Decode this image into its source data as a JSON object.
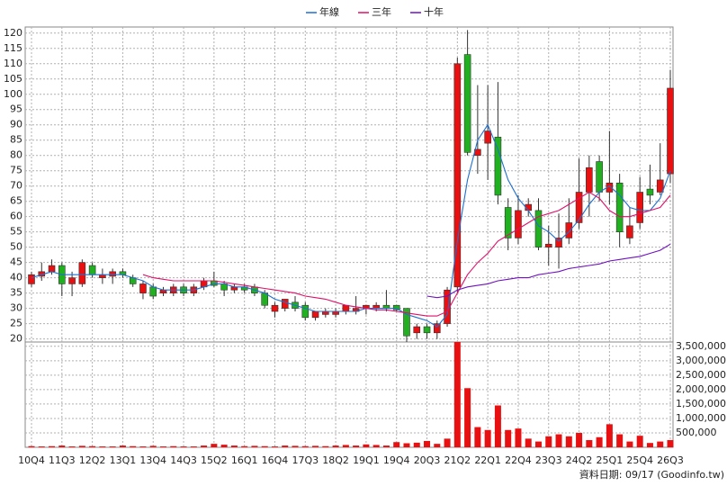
{
  "chart_data": {
    "type": "candlestick",
    "categories": [
      "10Q4",
      "11Q1",
      "11Q2",
      "11Q3",
      "11Q4",
      "12Q1",
      "12Q2",
      "12Q3",
      "12Q4",
      "13Q1",
      "13Q2",
      "13Q3",
      "13Q4",
      "14Q1",
      "14Q2",
      "14Q3",
      "14Q4",
      "15Q1",
      "15Q2",
      "15Q3",
      "15Q4",
      "16Q1",
      "16Q2",
      "16Q3",
      "16Q4",
      "17Q1",
      "17Q2",
      "17Q3",
      "17Q4",
      "18Q1",
      "18Q2",
      "18Q3",
      "18Q4",
      "19Q1",
      "19Q2",
      "19Q3",
      "19Q4",
      "20Q1",
      "20Q2",
      "20Q3",
      "20Q4",
      "21Q1",
      "21Q2",
      "21Q3",
      "21Q4",
      "22Q1",
      "22Q2",
      "22Q3",
      "22Q4",
      "23Q1",
      "23Q2",
      "23Q3",
      "23Q4",
      "24Q1",
      "24Q2",
      "24Q3",
      "24Q4",
      "25Q1",
      "25Q2",
      "25Q3",
      "25Q4",
      "26Q1",
      "26Q2",
      "26Q3"
    ],
    "x_label_every": 3,
    "open": [
      38,
      40.5,
      42,
      44,
      38,
      38,
      44,
      40,
      40.5,
      42,
      40,
      35,
      37,
      35,
      35,
      37,
      35,
      37,
      39,
      38,
      36,
      37,
      37,
      35,
      29,
      30,
      32,
      31,
      27,
      28,
      28,
      29,
      29,
      30,
      30,
      31,
      31,
      30,
      22,
      24,
      22,
      25,
      37,
      113,
      80,
      84,
      86,
      63,
      53,
      62,
      62,
      50,
      50,
      53,
      58,
      68,
      78,
      68,
      71,
      53,
      58,
      69,
      68,
      74
    ],
    "high": [
      42,
      45,
      46,
      45,
      42,
      46,
      45,
      43,
      43,
      43,
      41,
      39,
      38,
      37,
      38,
      38,
      38,
      40,
      42,
      39,
      38,
      38,
      38,
      36,
      32,
      33,
      34,
      32,
      29,
      30,
      30,
      31,
      34,
      31,
      32,
      36,
      31,
      30,
      25,
      25,
      26,
      37,
      112,
      121,
      103,
      103,
      104,
      66,
      67,
      66,
      66,
      57,
      61,
      66,
      79,
      80,
      80,
      88,
      74,
      63,
      73,
      77,
      84,
      108
    ],
    "low": [
      37,
      39,
      41,
      34,
      34,
      37,
      40,
      38,
      38,
      40,
      37,
      33,
      33,
      34,
      34,
      34,
      34,
      36,
      37,
      34,
      35,
      35,
      34,
      30,
      27,
      29,
      29,
      26,
      26,
      27,
      27,
      28,
      28,
      28,
      29,
      29,
      29,
      19,
      20,
      20,
      20,
      24,
      35,
      80,
      74,
      72,
      64,
      49,
      51,
      60,
      49,
      44,
      43,
      51,
      56,
      60,
      65,
      64,
      50,
      51,
      56,
      64,
      67,
      71
    ],
    "close": [
      41,
      42,
      44,
      38,
      40,
      45,
      41,
      41,
      42,
      41,
      38,
      38,
      34,
      36,
      37,
      35,
      37,
      39,
      37.5,
      36,
      37,
      36,
      35,
      31,
      31,
      33,
      30,
      27,
      29,
      29,
      29,
      31,
      30,
      31,
      31,
      30,
      29.5,
      21,
      24,
      22,
      25,
      36,
      110,
      81,
      82,
      88,
      67,
      53,
      62,
      64,
      50,
      51,
      53,
      58,
      68,
      76,
      68,
      71,
      55,
      57,
      68,
      67,
      72,
      102
    ],
    "volume": [
      40000,
      30000,
      40000,
      60000,
      30000,
      50000,
      40000,
      30000,
      30000,
      60000,
      40000,
      30000,
      50000,
      30000,
      40000,
      30000,
      30000,
      60000,
      120000,
      90000,
      60000,
      40000,
      50000,
      40000,
      30000,
      60000,
      50000,
      40000,
      50000,
      40000,
      60000,
      80000,
      60000,
      100000,
      80000,
      60000,
      180000,
      140000,
      160000,
      220000,
      120000,
      300000,
      3650000,
      2050000,
      700000,
      600000,
      1450000,
      600000,
      650000,
      300000,
      200000,
      380000,
      450000,
      380000,
      500000,
      250000,
      350000,
      800000,
      450000,
      200000,
      400000,
      150000,
      200000,
      250000
    ],
    "up_color": "#e81010",
    "down_color": "#20b020",
    "series": [
      {
        "name": "年線",
        "color": "#1e6fd0",
        "values": [
          40,
          41,
          42,
          41,
          41,
          41,
          41,
          41,
          41,
          41,
          40,
          39,
          37,
          36,
          36,
          36,
          36,
          37,
          38,
          38,
          37,
          37,
          36,
          35,
          33,
          32,
          31,
          30,
          29,
          29,
          29,
          29,
          29,
          30,
          30,
          30,
          30,
          28,
          27,
          26,
          24,
          28,
          52,
          72,
          85,
          90,
          82,
          72,
          66,
          62,
          57,
          55,
          52,
          55,
          59,
          64,
          68,
          70,
          67,
          63,
          62,
          62,
          66,
          75
        ]
      },
      {
        "name": "三年",
        "color": "#e0106a",
        "values": [
          null,
          null,
          null,
          null,
          null,
          null,
          null,
          null,
          null,
          null,
          null,
          41,
          40,
          39.5,
          39,
          39,
          39,
          39,
          39,
          38.5,
          38,
          37.5,
          37,
          36.5,
          36,
          35.5,
          35,
          34,
          33.5,
          33,
          32,
          31,
          30.5,
          30,
          29.5,
          29.5,
          29,
          28.5,
          28,
          27.5,
          27.5,
          29,
          35,
          41,
          45,
          48,
          52,
          54,
          56,
          58,
          60,
          61,
          62,
          64,
          66,
          68,
          66,
          62,
          60,
          60,
          61,
          62,
          63,
          67
        ]
      },
      {
        "name": "十年",
        "color": "#7010c0",
        "values": [
          null,
          null,
          null,
          null,
          null,
          null,
          null,
          null,
          null,
          null,
          null,
          null,
          null,
          null,
          null,
          null,
          null,
          null,
          null,
          null,
          null,
          null,
          null,
          null,
          null,
          null,
          null,
          null,
          null,
          null,
          null,
          null,
          null,
          null,
          null,
          null,
          null,
          null,
          null,
          34,
          33.5,
          34,
          36,
          37,
          37.5,
          38,
          39,
          39.5,
          40,
          40,
          41,
          41.5,
          42,
          43,
          43.5,
          44,
          44.5,
          45.5,
          46,
          46.5,
          47,
          48,
          49,
          51
        ]
      }
    ],
    "ylim": [
      19,
      122
    ],
    "yticks": [
      20,
      25,
      30,
      35,
      40,
      45,
      50,
      55,
      60,
      65,
      70,
      75,
      80,
      85,
      90,
      95,
      100,
      105,
      110,
      115,
      120
    ],
    "vlim": [
      0,
      3650000
    ],
    "vticks": [
      {
        "value": 500000,
        "label": "500,000"
      },
      {
        "value": 1000000,
        "label": "1,000,000"
      },
      {
        "value": 1500000,
        "label": "1,500,000"
      },
      {
        "value": 2000000,
        "label": "2,000,000"
      },
      {
        "value": 2500000,
        "label": "2,500,000"
      },
      {
        "value": 3000000,
        "label": "3,000,000"
      },
      {
        "value": 3500000,
        "label": "3,500,000"
      }
    ],
    "grid": true,
    "footer": "資料日期: 09/17 (Goodinfo.tw)"
  }
}
